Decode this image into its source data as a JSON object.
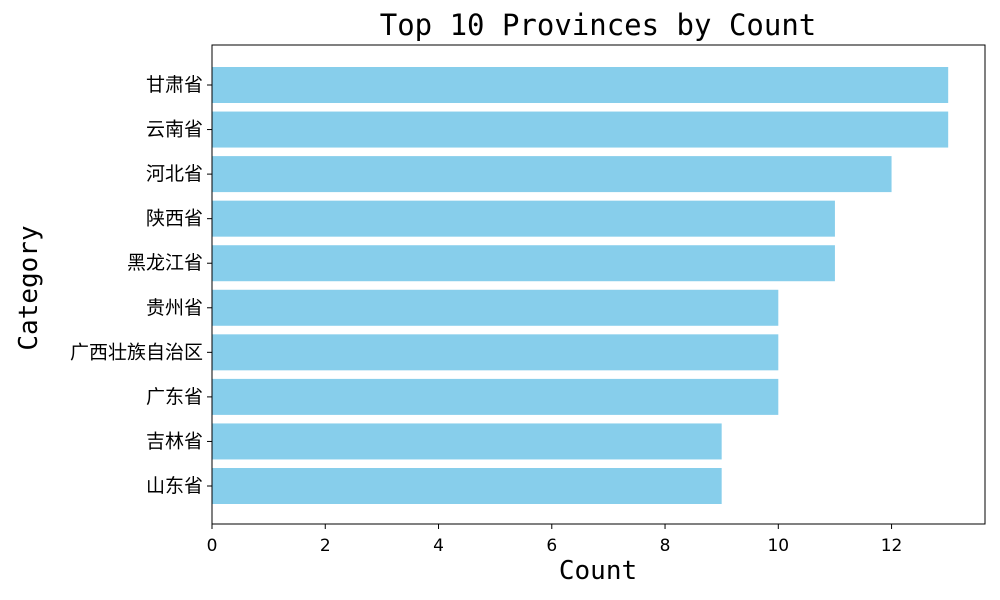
{
  "chart_data": {
    "type": "bar",
    "orientation": "horizontal",
    "title": "Top 10 Provinces by Count",
    "xlabel": "Count",
    "ylabel": "Category",
    "categories": [
      "甘肃省",
      "云南省",
      "河北省",
      "陕西省",
      "黑龙江省",
      "贵州省",
      "广西壮族自治区",
      "广东省",
      "吉林省",
      "山东省"
    ],
    "values": [
      13,
      13,
      12,
      11,
      11,
      10,
      10,
      10,
      9,
      9
    ],
    "xlim": [
      0,
      13.65
    ],
    "xticks": [
      0,
      2,
      4,
      6,
      8,
      10,
      12
    ],
    "bar_color": "#87CEEB",
    "grid": false,
    "legend": "none"
  }
}
